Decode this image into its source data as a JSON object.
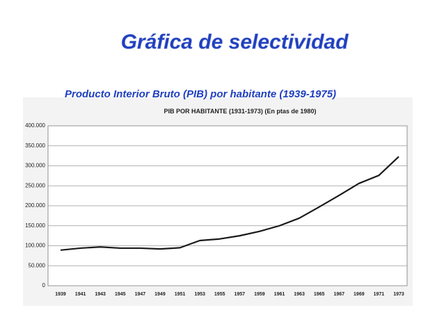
{
  "header": {
    "title": "Gráfica de selectividad",
    "subtitle": "Producto Interior Bruto (PIB) por habitante (1939-1975)"
  },
  "chart_data": {
    "type": "line",
    "title": "PIB POR HABITANTE (1931-1973) (En ptas de 1980)",
    "categories": [
      "1939",
      "1941",
      "1943",
      "1945",
      "1947",
      "1949",
      "1951",
      "1953",
      "1955",
      "1957",
      "1959",
      "1961",
      "1963",
      "1965",
      "1967",
      "1969",
      "1971",
      "1973"
    ],
    "values": [
      89000,
      94000,
      97000,
      94000,
      94000,
      92000,
      95000,
      113000,
      117000,
      125000,
      136000,
      150000,
      169000,
      197000,
      226000,
      256000,
      276000,
      323000
    ],
    "color": "#1a1a1a",
    "ylim": [
      0,
      400000
    ],
    "yticks": [
      0,
      {
        "value": 50000,
        "label": "50.000"
      },
      {
        "value": 100000,
        "label": "100.000"
      },
      {
        "value": 150000,
        "label": "150.000"
      },
      {
        "value": 200000,
        "label": "200.000"
      },
      {
        "value": 250000,
        "label": "250.000"
      },
      {
        "value": 300000,
        "label": "300.000"
      },
      {
        "value": 350000,
        "label": "350.000"
      },
      {
        "value": 400000,
        "label": "400.000"
      }
    ],
    "grid": true
  }
}
